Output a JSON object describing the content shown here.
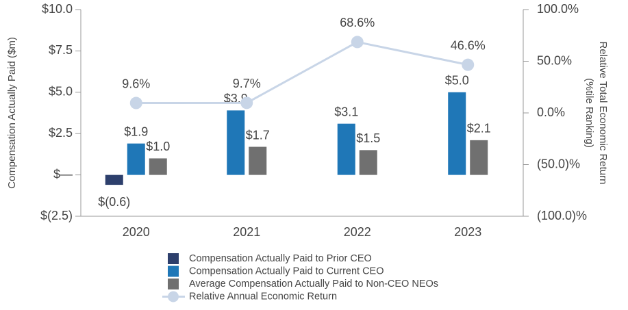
{
  "chart_data": {
    "type": "bar",
    "ylabel": "Compensation Actually Paid ($m)",
    "y2label": [
      "Relative Total Economic Return",
      "(%tile Ranking)"
    ],
    "categories": [
      "2020",
      "2021",
      "2022",
      "2023"
    ],
    "series": [
      {
        "name": "Compensation Actually Paid to Prior CEO",
        "color": "#2d3f6c",
        "type": "bar",
        "values": [
          -0.6,
          null,
          null,
          null
        ],
        "value_labels": [
          "$(0.6)",
          null,
          null,
          null
        ]
      },
      {
        "name": "Compensation Actually Paid to Current CEO",
        "color": "#1f77b7",
        "type": "bar",
        "values": [
          1.9,
          3.9,
          3.1,
          5.0
        ],
        "value_labels": [
          "$1.9",
          "$3.9",
          "$3.1",
          "$5.0"
        ]
      },
      {
        "name": "Average Compensation Actually Paid to Non-CEO NEOs",
        "color": "#707070",
        "type": "bar",
        "values": [
          1.0,
          1.7,
          1.5,
          2.1
        ],
        "value_labels": [
          "$1.0",
          "$1.7",
          "$1.5",
          "$2.1"
        ]
      },
      {
        "name": "Relative Annual Economic Return",
        "color": "#c8d5e7",
        "type": "line",
        "axis": "y2",
        "values": [
          9.6,
          9.7,
          68.6,
          46.6
        ],
        "value_labels": [
          "9.6%",
          "9.7%",
          "68.6%",
          "46.6%"
        ]
      }
    ],
    "ylim": [
      -2.5,
      10
    ],
    "yticks": [
      {
        "value": -2.5,
        "label": "$(2.5)"
      },
      {
        "value": 0,
        "label": "$—"
      },
      {
        "value": 2.5,
        "label": "$2.5"
      },
      {
        "value": 5,
        "label": "$5.0"
      },
      {
        "value": 7.5,
        "label": "$7.5"
      },
      {
        "value": 10,
        "label": "$10.0"
      }
    ],
    "y2lim": [
      -100,
      100
    ],
    "y2ticks": [
      {
        "value": -100,
        "label": "(100.0)%"
      },
      {
        "value": -50,
        "label": "(50.0)%"
      },
      {
        "value": 0,
        "label": "0.0%"
      },
      {
        "value": 50,
        "label": "50.0%"
      },
      {
        "value": 100,
        "label": "100.0%"
      }
    ],
    "legend": "bottom"
  }
}
